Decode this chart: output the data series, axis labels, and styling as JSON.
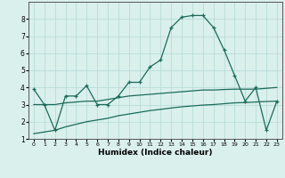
{
  "xlabel": "Humidex (Indice chaleur)",
  "background_color": "#daf0ed",
  "grid_color": "#b8dbd8",
  "line_color": "#1a6b5a",
  "x_values": [
    0,
    1,
    2,
    3,
    4,
    5,
    6,
    7,
    8,
    9,
    10,
    11,
    12,
    13,
    14,
    15,
    16,
    17,
    18,
    19,
    20,
    21,
    22,
    23
  ],
  "line1": [
    3.9,
    3.0,
    1.5,
    3.5,
    3.5,
    4.1,
    3.0,
    3.0,
    3.5,
    4.3,
    4.3,
    5.2,
    5.6,
    7.5,
    8.1,
    8.2,
    8.2,
    7.5,
    6.2,
    4.7,
    3.2,
    4.0,
    1.5,
    3.2
  ],
  "line_straight1": [
    3.0,
    3.0,
    3.0,
    3.1,
    3.15,
    3.2,
    3.2,
    3.3,
    3.4,
    3.5,
    3.55,
    3.6,
    3.65,
    3.7,
    3.75,
    3.8,
    3.85,
    3.85,
    3.88,
    3.9,
    3.9,
    3.9,
    3.95,
    4.0
  ],
  "line_straight2": [
    1.3,
    1.4,
    1.5,
    1.7,
    1.85,
    2.0,
    2.1,
    2.2,
    2.35,
    2.45,
    2.55,
    2.65,
    2.72,
    2.8,
    2.87,
    2.92,
    2.97,
    3.0,
    3.05,
    3.1,
    3.12,
    3.15,
    3.18,
    3.2
  ],
  "ylim": [
    1,
    9
  ],
  "xlim": [
    -0.5,
    23.5
  ],
  "yticks": [
    1,
    2,
    3,
    4,
    5,
    6,
    7,
    8
  ],
  "xticks": [
    0,
    1,
    2,
    3,
    4,
    5,
    6,
    7,
    8,
    9,
    10,
    11,
    12,
    13,
    14,
    15,
    16,
    17,
    18,
    19,
    20,
    21,
    22,
    23
  ]
}
